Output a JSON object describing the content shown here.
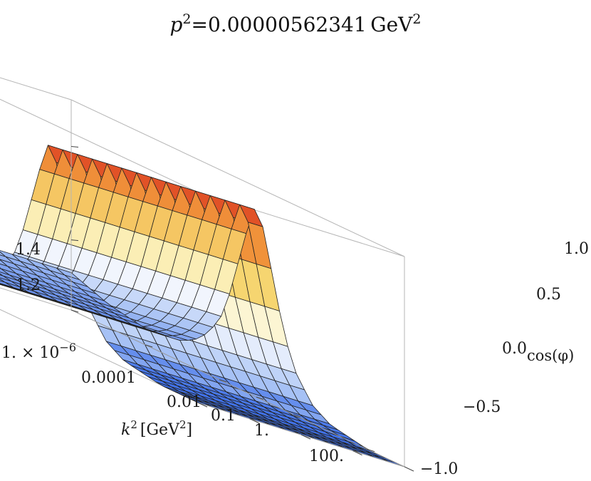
{
  "chart_data": {
    "type": "surface3d",
    "title": "p^2=0.00000562341 GeV^2",
    "title_parts": {
      "base": "p",
      "exp": "2",
      "eq_value": "=0.00000562341 GeV",
      "unit_exp": "2"
    },
    "xlabel_parts": {
      "base": "k",
      "exp": "2",
      "unit_open": "[GeV",
      "unit_exp": "2",
      "unit_close": "]"
    },
    "ylabel_parts": {
      "prefix": "0.0",
      "sub": "cos(φ)"
    },
    "x_axis": {
      "name": "k^2 [GeV^2]",
      "scale": "log10",
      "range": [
        1e-06,
        1000
      ],
      "ticks": [
        {
          "value": 1e-06,
          "label": "1. × 10"
        },
        {
          "value": 0.0001,
          "label": "0.0001"
        },
        {
          "value": 0.01,
          "label": "0.01"
        },
        {
          "value": 0.1,
          "label": "0.1"
        },
        {
          "value": 1,
          "label": "1."
        },
        {
          "value": 100,
          "label": "100."
        }
      ],
      "first_tick_exponent": "−6"
    },
    "y_axis": {
      "name": "cos(φ)",
      "range": [
        -1,
        1
      ],
      "ticks": [
        {
          "value": 1.0,
          "label": "1.0"
        },
        {
          "value": 0.5,
          "label": "0.5"
        },
        {
          "value": 0.0,
          "label": "0.0"
        },
        {
          "value": -0.5,
          "label": "−0.5"
        },
        {
          "value": -1.0,
          "label": "−1.0"
        }
      ]
    },
    "z_axis": {
      "range": [
        1.05,
        1.5
      ],
      "ticks": [
        {
          "value": 1.4,
          "label": "1.4"
        },
        {
          "value": 1.2,
          "label": "1.2"
        }
      ]
    },
    "surface_profile_vs_log10_k2": [
      [
        -6.0,
        1.13
      ],
      [
        -5.0,
        1.1
      ],
      [
        -4.0,
        1.085
      ],
      [
        -3.0,
        1.095
      ],
      [
        -2.5,
        1.12
      ],
      [
        -2.0,
        1.175
      ],
      [
        -1.7,
        1.25
      ],
      [
        -1.4,
        1.35
      ],
      [
        -1.15,
        1.43
      ],
      [
        -1.0,
        1.46
      ],
      [
        -0.85,
        1.43
      ],
      [
        -0.6,
        1.34
      ],
      [
        -0.3,
        1.23
      ],
      [
        0.0,
        1.15
      ],
      [
        0.5,
        1.09
      ],
      [
        1.0,
        1.065
      ],
      [
        2.0,
        1.05
      ],
      [
        3.0,
        1.05
      ]
    ],
    "surface_depends_on_cos_phi": false,
    "colormap": [
      "#3d6fe8",
      "#a9c3f5",
      "#ffffff",
      "#f7e07a",
      "#f29a3c",
      "#d9301e"
    ],
    "grid": true
  }
}
